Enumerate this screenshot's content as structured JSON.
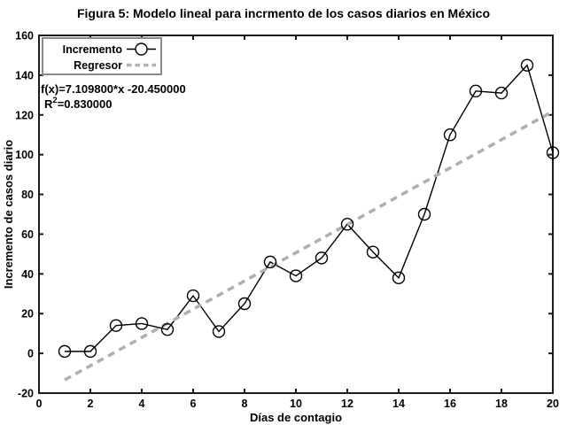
{
  "figure": {
    "title": "Figura 5: Modelo lineal para incrmento de los casos diarios en México"
  },
  "chart_data": {
    "type": "line",
    "title": "Figura 5: Modelo lineal para incrmento de los casos diarios en México",
    "xlabel": "Días de contagio",
    "ylabel": "Incremento de casos diario",
    "xlim": [
      0,
      20
    ],
    "ylim": [
      -20,
      160
    ],
    "x_ticks": [
      0,
      2,
      4,
      6,
      8,
      10,
      12,
      14,
      16,
      18,
      20
    ],
    "y_ticks": [
      -20,
      0,
      20,
      40,
      60,
      80,
      100,
      120,
      140,
      160
    ],
    "grid": false,
    "legend": {
      "position": "top-left",
      "entries": [
        {
          "label": "Incremento",
          "style": "line-with-open-circle"
        },
        {
          "label": "Regresor",
          "style": "gray-dashed-line"
        }
      ]
    },
    "series": [
      {
        "name": "Incremento",
        "type": "linespoints",
        "marker": "open-circle",
        "color": "#000000",
        "x": [
          1,
          2,
          3,
          4,
          5,
          6,
          7,
          8,
          9,
          10,
          11,
          12,
          13,
          14,
          15,
          16,
          17,
          18,
          19,
          20
        ],
        "y": [
          1,
          1,
          14,
          15,
          12,
          29,
          11,
          25,
          46,
          39,
          48,
          65,
          51,
          38,
          70,
          110,
          132,
          131,
          145,
          101
        ]
      },
      {
        "name": "Regresor",
        "type": "line-dashed",
        "color": "#b0b0b0",
        "slope": 7.1098,
        "intercept": -20.45,
        "x_range": [
          1,
          20
        ]
      }
    ],
    "annotations": {
      "fx": "f(x)=7.109800*x -20.450000",
      "r2_prefix": "R",
      "r2_sup": "2",
      "r2_suffix": "=0.830000"
    }
  },
  "colors": {
    "axis": "#1a1a1a",
    "text": "#000000",
    "regressor": "#b0b0b0",
    "legend_border": "#8a8a8a",
    "background": "#ffffff"
  }
}
